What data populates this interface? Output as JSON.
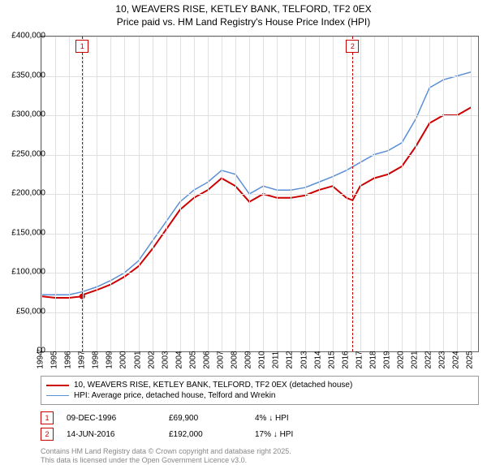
{
  "title_line1": "10, WEAVERS RISE, KETLEY BANK, TELFORD, TF2 0EX",
  "title_line2": "Price paid vs. HM Land Registry's House Price Index (HPI)",
  "chart": {
    "type": "line",
    "background_color": "#ffffff",
    "grid_color": "#e0e0e0",
    "axis_color": "#666666",
    "title_fontsize": 12,
    "label_fontsize": 10,
    "x_years": [
      1994,
      1995,
      1996,
      1997,
      1998,
      1999,
      2000,
      2001,
      2002,
      2003,
      2004,
      2005,
      2006,
      2007,
      2008,
      2009,
      2010,
      2011,
      2012,
      2013,
      2014,
      2015,
      2016,
      2017,
      2018,
      2019,
      2020,
      2021,
      2022,
      2023,
      2024,
      2025
    ],
    "xlim": [
      1994,
      2025.5
    ],
    "ylim": [
      0,
      400000
    ],
    "ytick_step": 50000,
    "ylabels": [
      "£0",
      "£50,000",
      "£100,000",
      "£150,000",
      "£200,000",
      "£250,000",
      "£300,000",
      "£350,000",
      "£400,000"
    ],
    "marker_color": "#cc0000",
    "markers": [
      {
        "id": "1",
        "year": 1996.94
      },
      {
        "id": "2",
        "year": 2016.45
      }
    ],
    "series": [
      {
        "name": "price_paid",
        "color": "#cc0000",
        "width": 2,
        "points": [
          [
            1994,
            70000
          ],
          [
            1995,
            68000
          ],
          [
            1996,
            68000
          ],
          [
            1996.94,
            69900
          ],
          [
            1997,
            72000
          ],
          [
            1998,
            78000
          ],
          [
            1999,
            85000
          ],
          [
            2000,
            95000
          ],
          [
            2001,
            108000
          ],
          [
            2002,
            130000
          ],
          [
            2003,
            155000
          ],
          [
            2004,
            180000
          ],
          [
            2005,
            195000
          ],
          [
            2006,
            205000
          ],
          [
            2007,
            220000
          ],
          [
            2008,
            210000
          ],
          [
            2009,
            190000
          ],
          [
            2010,
            200000
          ],
          [
            2011,
            195000
          ],
          [
            2012,
            195000
          ],
          [
            2013,
            198000
          ],
          [
            2014,
            205000
          ],
          [
            2015,
            210000
          ],
          [
            2016,
            195000
          ],
          [
            2016.45,
            192000
          ],
          [
            2017,
            210000
          ],
          [
            2018,
            220000
          ],
          [
            2019,
            225000
          ],
          [
            2020,
            235000
          ],
          [
            2021,
            260000
          ],
          [
            2022,
            290000
          ],
          [
            2023,
            300000
          ],
          [
            2024,
            300000
          ],
          [
            2025,
            310000
          ]
        ]
      },
      {
        "name": "hpi",
        "color": "#5b8fd6",
        "width": 1.5,
        "points": [
          [
            1994,
            72000
          ],
          [
            1995,
            72000
          ],
          [
            1996,
            72000
          ],
          [
            1997,
            76000
          ],
          [
            1998,
            82000
          ],
          [
            1999,
            90000
          ],
          [
            2000,
            100000
          ],
          [
            2001,
            115000
          ],
          [
            2002,
            140000
          ],
          [
            2003,
            165000
          ],
          [
            2004,
            190000
          ],
          [
            2005,
            205000
          ],
          [
            2006,
            215000
          ],
          [
            2007,
            230000
          ],
          [
            2008,
            225000
          ],
          [
            2009,
            200000
          ],
          [
            2010,
            210000
          ],
          [
            2011,
            205000
          ],
          [
            2012,
            205000
          ],
          [
            2013,
            208000
          ],
          [
            2014,
            215000
          ],
          [
            2015,
            222000
          ],
          [
            2016,
            230000
          ],
          [
            2017,
            240000
          ],
          [
            2018,
            250000
          ],
          [
            2019,
            255000
          ],
          [
            2020,
            265000
          ],
          [
            2021,
            295000
          ],
          [
            2022,
            335000
          ],
          [
            2023,
            345000
          ],
          [
            2024,
            350000
          ],
          [
            2025,
            355000
          ]
        ]
      }
    ]
  },
  "legend": {
    "items": [
      {
        "label": "10, WEAVERS RISE, KETLEY BANK, TELFORD, TF2 0EX (detached house)",
        "color": "#cc0000",
        "width": 2
      },
      {
        "label": "HPI: Average price, detached house, Telford and Wrekin",
        "color": "#5b8fd6",
        "width": 1.5
      }
    ]
  },
  "instances": [
    {
      "id": "1",
      "date": "09-DEC-1996",
      "price": "£69,900",
      "diff": "4% ↓ HPI"
    },
    {
      "id": "2",
      "date": "14-JUN-2016",
      "price": "£192,000",
      "diff": "17% ↓ HPI"
    }
  ],
  "footnote_line1": "Contains HM Land Registry data © Crown copyright and database right 2025.",
  "footnote_line2": "This data is licensed under the Open Government Licence v3.0."
}
